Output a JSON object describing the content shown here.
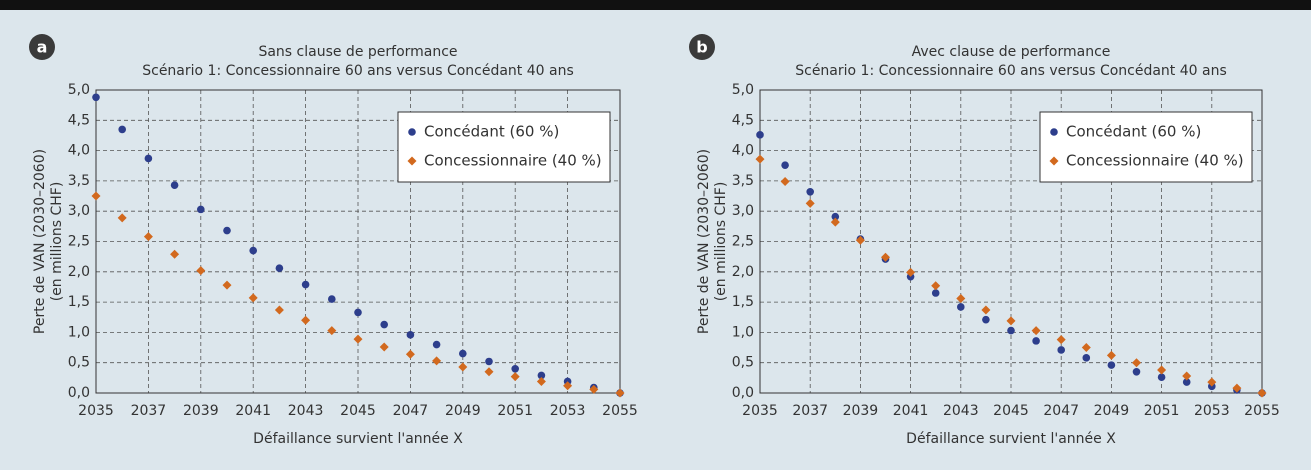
{
  "chart_data": [
    {
      "type": "scatter",
      "label": "a",
      "title": "Sans clause de performance",
      "subtitle": "Scénario 1: Concessionnaire 60 ans versus Concédant 40 ans",
      "xlabel": "Défaillance survient l'année X",
      "ylabel": [
        "Perte de VAN (2030–2060)",
        "(en millions CHF)"
      ],
      "x": [
        2035,
        2036,
        2037,
        2038,
        2039,
        2040,
        2041,
        2042,
        2043,
        2044,
        2045,
        2046,
        2047,
        2048,
        2049,
        2050,
        2051,
        2052,
        2053,
        2054,
        2055
      ],
      "series": [
        {
          "name": "Concédant (60 %)",
          "color": "#2d3e8c",
          "marker": "circle",
          "values": [
            4.88,
            4.35,
            3.87,
            3.43,
            3.03,
            2.68,
            2.35,
            2.06,
            1.79,
            1.55,
            1.33,
            1.13,
            0.96,
            0.8,
            0.65,
            0.52,
            0.4,
            0.29,
            0.19,
            0.09,
            0.0
          ]
        },
        {
          "name": "Concessionnaire (40 %)",
          "color": "#d2691e",
          "marker": "diamond",
          "values": [
            3.25,
            2.89,
            2.58,
            2.29,
            2.02,
            1.78,
            1.57,
            1.37,
            1.2,
            1.03,
            0.89,
            0.76,
            0.64,
            0.53,
            0.43,
            0.35,
            0.27,
            0.19,
            0.12,
            0.06,
            0.0
          ]
        }
      ],
      "xlim": [
        2035,
        2055
      ],
      "xticks": [
        2035,
        2037,
        2039,
        2041,
        2043,
        2045,
        2047,
        2049,
        2051,
        2053,
        2055
      ],
      "ylim": [
        0,
        5
      ],
      "yticks": [
        {
          "value": 0,
          "label": "0,0"
        },
        {
          "value": 0.5,
          "label": "0,5"
        },
        {
          "value": 1,
          "label": "1,0"
        },
        {
          "value": 1.5,
          "label": "1,5"
        },
        {
          "value": 2,
          "label": "2,0"
        },
        {
          "value": 2.5,
          "label": "2,5"
        },
        {
          "value": 3,
          "label": "3,0"
        },
        {
          "value": 3.5,
          "label": "3,5"
        },
        {
          "value": 4,
          "label": "4,0"
        },
        {
          "value": 4.5,
          "label": "4,5"
        },
        {
          "value": 5,
          "label": "5,0"
        }
      ],
      "grid": true,
      "legend": "upper right"
    },
    {
      "type": "scatter",
      "label": "b",
      "title": "Avec clause de performance",
      "subtitle": "Scénario 1: Concessionnaire 60 ans versus Concédant 40 ans",
      "xlabel": "Défaillance survient l'année X",
      "ylabel": [
        "Perte de VAN (2030–2060)",
        "(en millions CHF)"
      ],
      "x": [
        2035,
        2036,
        2037,
        2038,
        2039,
        2040,
        2041,
        2042,
        2043,
        2044,
        2045,
        2046,
        2047,
        2048,
        2049,
        2050,
        2051,
        2052,
        2053,
        2054,
        2055
      ],
      "series": [
        {
          "name": "Concédant (60 %)",
          "color": "#2d3e8c",
          "marker": "circle",
          "values": [
            4.26,
            3.76,
            3.32,
            2.91,
            2.54,
            2.21,
            1.92,
            1.65,
            1.42,
            1.21,
            1.03,
            0.86,
            0.71,
            0.58,
            0.46,
            0.35,
            0.26,
            0.18,
            0.11,
            0.05,
            0.0
          ]
        },
        {
          "name": "Concessionnaire (40 %)",
          "color": "#d2691e",
          "marker": "diamond",
          "values": [
            3.86,
            3.49,
            3.13,
            2.82,
            2.52,
            2.24,
            1.99,
            1.77,
            1.56,
            1.37,
            1.19,
            1.03,
            0.88,
            0.75,
            0.62,
            0.5,
            0.38,
            0.28,
            0.18,
            0.08,
            0.0
          ]
        }
      ],
      "xlim": [
        2035,
        2055
      ],
      "xticks": [
        2035,
        2037,
        2039,
        2041,
        2043,
        2045,
        2047,
        2049,
        2051,
        2053,
        2055
      ],
      "ylim": [
        0,
        5
      ],
      "yticks": [
        {
          "value": 0,
          "label": "0,0"
        },
        {
          "value": 0.5,
          "label": "0,5"
        },
        {
          "value": 1,
          "label": "1,0"
        },
        {
          "value": 1.5,
          "label": "1,5"
        },
        {
          "value": 2,
          "label": "2,0"
        },
        {
          "value": 2.5,
          "label": "2,5"
        },
        {
          "value": 3,
          "label": "3,0"
        },
        {
          "value": 3.5,
          "label": "3,5"
        },
        {
          "value": 4,
          "label": "4,0"
        },
        {
          "value": 4.5,
          "label": "4,5"
        },
        {
          "value": 5,
          "label": "5,0"
        }
      ],
      "grid": true,
      "legend": "upper right"
    }
  ]
}
